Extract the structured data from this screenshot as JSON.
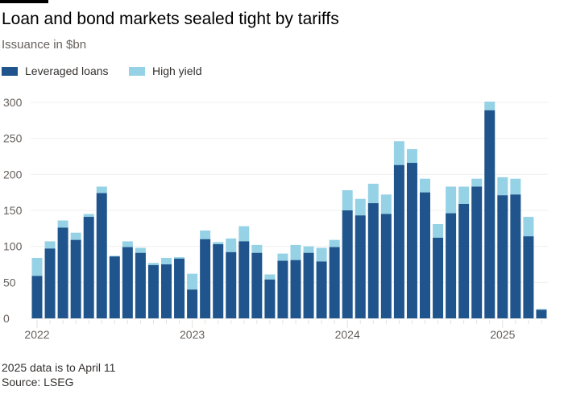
{
  "title": "Loan and bond markets sealed tight by tariffs",
  "subtitle": "Issuance in $bn",
  "note": "2025 data is to April 11",
  "source": "Source: LSEG",
  "colors": {
    "loans": "#1f558c",
    "high_yield": "#96d2e6"
  },
  "chart_data": {
    "type": "bar",
    "stacked": true,
    "ylim": [
      0,
      300
    ],
    "yticks": [
      0,
      50,
      100,
      150,
      200,
      250,
      300
    ],
    "grid": true,
    "legend": "top-left",
    "xticklabels": [
      "2022",
      "2023",
      "2024",
      "2025"
    ],
    "categories": [
      "2022-01",
      "2022-02",
      "2022-03",
      "2022-04",
      "2022-05",
      "2022-06",
      "2022-07",
      "2022-08",
      "2022-09",
      "2022-10",
      "2022-11",
      "2022-12",
      "2023-01",
      "2023-02",
      "2023-03",
      "2023-04",
      "2023-05",
      "2023-06",
      "2023-07",
      "2023-08",
      "2023-09",
      "2023-10",
      "2023-11",
      "2023-12",
      "2024-01",
      "2024-02",
      "2024-03",
      "2024-04",
      "2024-05",
      "2024-06",
      "2024-07",
      "2024-08",
      "2024-09",
      "2024-10",
      "2024-11",
      "2024-12",
      "2025-01",
      "2025-02",
      "2025-03",
      "2025-04"
    ],
    "series": [
      {
        "name": "Leveraged loans",
        "values": [
          59,
          97,
          126,
          109,
          141,
          174,
          86,
          99,
          91,
          74,
          75,
          83,
          40,
          110,
          103,
          92,
          107,
          91,
          54,
          80,
          81,
          91,
          79,
          99,
          150,
          143,
          160,
          145,
          213,
          216,
          175,
          112,
          146,
          159,
          183,
          289,
          171,
          172,
          114,
          12
        ]
      },
      {
        "name": "High yield",
        "values": [
          25,
          10,
          10,
          10,
          4,
          9,
          1,
          8,
          7,
          3,
          9,
          2,
          22,
          12,
          3,
          19,
          21,
          11,
          7,
          10,
          21,
          9,
          19,
          10,
          28,
          23,
          27,
          27,
          33,
          19,
          19,
          19,
          37,
          24,
          11,
          12,
          25,
          22,
          27,
          1
        ]
      }
    ]
  }
}
